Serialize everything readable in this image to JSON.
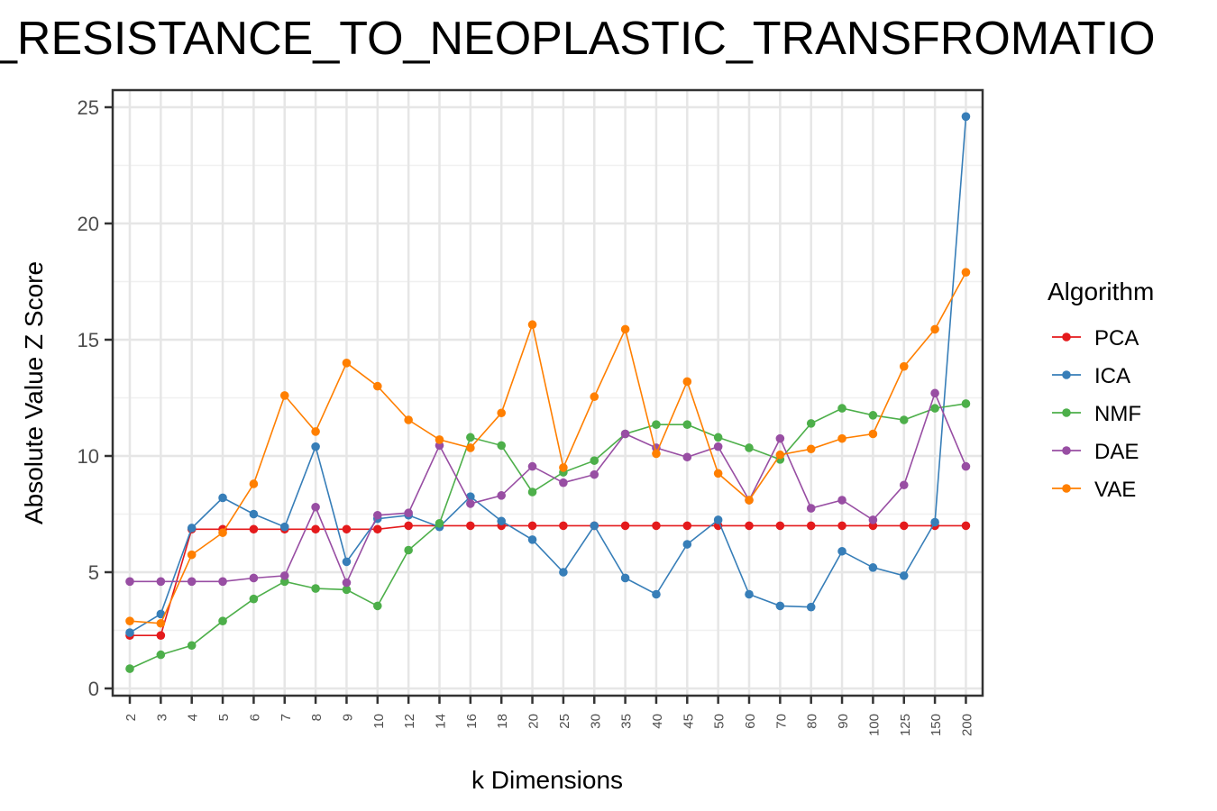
{
  "chart_data": {
    "type": "line",
    "title": "_RESISTANCE_TO_NEOPLASTIC_TRANSFROMATIO",
    "xlabel": "k Dimensions",
    "ylabel": "Absolute Value Z Score",
    "ylim": [
      0,
      25
    ],
    "yticks": [
      0,
      5,
      10,
      15,
      20,
      25
    ],
    "grid": true,
    "legend_title": "Algorithm",
    "legend_position": "right",
    "categories": [
      "2",
      "3",
      "4",
      "5",
      "6",
      "7",
      "8",
      "9",
      "10",
      "12",
      "14",
      "16",
      "18",
      "20",
      "25",
      "30",
      "35",
      "40",
      "45",
      "50",
      "60",
      "70",
      "80",
      "90",
      "100",
      "125",
      "150",
      "200"
    ],
    "series": [
      {
        "name": "PCA",
        "color": "#e41a1c",
        "values": [
          2.28,
          2.28,
          6.85,
          6.85,
          6.85,
          6.85,
          6.85,
          6.85,
          6.85,
          7.0,
          7.0,
          7.0,
          7.0,
          7.0,
          7.0,
          7.0,
          7.0,
          7.0,
          7.0,
          7.0,
          7.0,
          7.0,
          7.0,
          7.0,
          7.0,
          7.0,
          7.0,
          7.0
        ]
      },
      {
        "name": "ICA",
        "color": "#377eb8",
        "values": [
          2.4,
          3.2,
          6.9,
          8.2,
          7.5,
          6.95,
          10.4,
          5.45,
          7.3,
          7.45,
          6.95,
          8.25,
          7.2,
          6.4,
          5.0,
          7.0,
          4.75,
          4.05,
          6.2,
          7.25,
          4.05,
          3.55,
          3.5,
          5.9,
          5.2,
          4.85,
          7.15,
          24.6
        ]
      },
      {
        "name": "NMF",
        "color": "#4daf4a",
        "values": [
          0.85,
          1.45,
          1.85,
          2.9,
          3.85,
          4.6,
          4.3,
          4.25,
          3.55,
          5.95,
          7.1,
          10.8,
          10.45,
          8.45,
          9.3,
          9.8,
          10.95,
          11.35,
          11.35,
          10.8,
          10.35,
          9.85,
          11.4,
          12.05,
          11.75,
          11.55,
          12.05,
          12.25
        ]
      },
      {
        "name": "DAE",
        "color": "#984ea3",
        "values": [
          4.6,
          4.6,
          4.6,
          4.6,
          4.75,
          4.85,
          7.8,
          4.55,
          7.45,
          7.55,
          10.45,
          7.95,
          8.3,
          9.55,
          8.85,
          9.2,
          10.95,
          10.35,
          9.95,
          10.4,
          8.1,
          10.75,
          7.75,
          8.1,
          7.25,
          8.75,
          12.7,
          9.55
        ]
      },
      {
        "name": "VAE",
        "color": "#ff7f00",
        "values": [
          2.9,
          2.8,
          5.75,
          6.7,
          8.8,
          12.6,
          11.05,
          14.0,
          13.0,
          11.55,
          10.7,
          10.35,
          11.85,
          15.65,
          9.5,
          12.55,
          15.45,
          10.1,
          13.2,
          9.25,
          8.1,
          10.05,
          10.3,
          10.75,
          10.95,
          13.85,
          15.45,
          17.9
        ]
      }
    ]
  }
}
